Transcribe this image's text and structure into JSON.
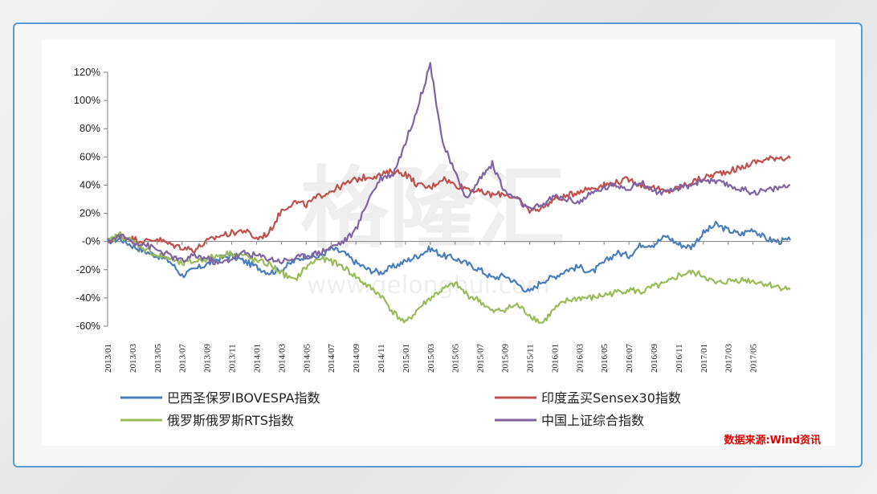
{
  "chart_data": {
    "type": "line",
    "title": "",
    "xlabel": "",
    "ylabel": "",
    "ylim": [
      -60,
      120
    ],
    "y_ticks": [
      "120%",
      "100%",
      "80%",
      "60%",
      "40%",
      "20%",
      "-0%",
      "-20%",
      "-40%",
      "-60%"
    ],
    "y_tick_values": [
      120,
      100,
      80,
      60,
      40,
      20,
      0,
      -20,
      -40,
      -60
    ],
    "x_ticks": [
      "2013/01",
      "2013/03",
      "2013/05",
      "2013/07",
      "2013/09",
      "2013/11",
      "2014/01",
      "2014/03",
      "2014/05",
      "2014/07",
      "2014/09",
      "2014/11",
      "2015/01",
      "2015/03",
      "2015/05",
      "2015/07",
      "2015/09",
      "2015/11",
      "2016/01",
      "2016/03",
      "2016/05",
      "2016/07",
      "2016/09",
      "2016/11",
      "2017/01",
      "2017/03",
      "2017/05"
    ],
    "months_total": 55,
    "series": [
      {
        "name": "巴西圣保罗IBOVESPA指数",
        "color": "#4a7ebb",
        "x": [
          0,
          1,
          2,
          3,
          4,
          5,
          6,
          7,
          8,
          9,
          10,
          11,
          12,
          13,
          14,
          15,
          16,
          17,
          18,
          19,
          20,
          21,
          22,
          23,
          24,
          25,
          26,
          27,
          28,
          29,
          30,
          31,
          32,
          33,
          34,
          35,
          36,
          37,
          38,
          39,
          40,
          41,
          42,
          43,
          44,
          45,
          46,
          47,
          48,
          49,
          50,
          51,
          52,
          53,
          54,
          55
        ],
        "values": [
          0,
          2,
          -3,
          -7,
          -10,
          -14,
          -24,
          -20,
          -16,
          -12,
          -10,
          -14,
          -18,
          -22,
          -20,
          -14,
          -10,
          -11,
          -5,
          -8,
          -15,
          -20,
          -22,
          -18,
          -14,
          -10,
          -5,
          -10,
          -12,
          -16,
          -20,
          -26,
          -24,
          -30,
          -36,
          -28,
          -25,
          -20,
          -18,
          -22,
          -15,
          -8,
          -10,
          -2,
          -2,
          4,
          -2,
          -4,
          6,
          12,
          8,
          5,
          9,
          2,
          0,
          1
        ]
      },
      {
        "name": "印度孟买Sensex30指数",
        "color": "#c0504d",
        "x": [
          0,
          1,
          2,
          3,
          4,
          5,
          6,
          7,
          8,
          9,
          10,
          11,
          12,
          13,
          14,
          15,
          16,
          17,
          18,
          19,
          20,
          21,
          22,
          23,
          24,
          25,
          26,
          27,
          28,
          29,
          30,
          31,
          32,
          33,
          34,
          35,
          36,
          37,
          38,
          39,
          40,
          41,
          42,
          43,
          44,
          45,
          46,
          47,
          48,
          49,
          50,
          51,
          52,
          53,
          54,
          55
        ],
        "values": [
          0,
          4,
          2,
          0,
          2,
          -2,
          -4,
          -6,
          0,
          4,
          6,
          8,
          2,
          6,
          22,
          28,
          26,
          32,
          36,
          40,
          44,
          46,
          47,
          50,
          48,
          40,
          38,
          45,
          40,
          38,
          35,
          33,
          34,
          30,
          22,
          24,
          30,
          32,
          36,
          38,
          40,
          42,
          44,
          40,
          38,
          35,
          38,
          42,
          45,
          48,
          50,
          52,
          56,
          58,
          60,
          59
        ]
      },
      {
        "name": "俄罗斯俄罗斯RTS指数",
        "color": "#9bbb59",
        "x": [
          0,
          1,
          2,
          3,
          4,
          5,
          6,
          7,
          8,
          9,
          10,
          11,
          12,
          13,
          14,
          15,
          16,
          17,
          18,
          19,
          20,
          21,
          22,
          23,
          24,
          25,
          26,
          27,
          28,
          29,
          30,
          31,
          32,
          33,
          34,
          35,
          36,
          37,
          38,
          39,
          40,
          41,
          42,
          43,
          44,
          45,
          46,
          47,
          48,
          49,
          50,
          51,
          52,
          53,
          54,
          55
        ],
        "values": [
          0,
          5,
          0,
          -5,
          -10,
          -12,
          -16,
          -14,
          -12,
          -10,
          -8,
          -10,
          -14,
          -16,
          -22,
          -28,
          -18,
          -12,
          -14,
          -18,
          -25,
          -32,
          -38,
          -50,
          -58,
          -48,
          -40,
          -34,
          -30,
          -38,
          -42,
          -50,
          -48,
          -45,
          -52,
          -58,
          -48,
          -42,
          -40,
          -40,
          -38,
          -36,
          -34,
          -36,
          -32,
          -30,
          -24,
          -22,
          -24,
          -30,
          -28,
          -27,
          -28,
          -30,
          -32,
          -34
        ]
      },
      {
        "name": "中国上证综合指数",
        "color": "#8064a2",
        "x": [
          0,
          1,
          2,
          3,
          4,
          5,
          6,
          7,
          8,
          9,
          10,
          11,
          12,
          13,
          14,
          15,
          16,
          17,
          18,
          19,
          20,
          21,
          22,
          23,
          24,
          25,
          26,
          27,
          28,
          29,
          30,
          31,
          32,
          33,
          34,
          35,
          36,
          37,
          38,
          39,
          40,
          41,
          42,
          43,
          44,
          45,
          46,
          47,
          48,
          49,
          50,
          51,
          52,
          53,
          54,
          55
        ],
        "values": [
          0,
          4,
          0,
          -2,
          -6,
          -10,
          -14,
          -10,
          -12,
          -16,
          -12,
          -8,
          -10,
          -12,
          -14,
          -12,
          -10,
          -8,
          -4,
          0,
          8,
          30,
          45,
          48,
          70,
          96,
          126,
          70,
          48,
          30,
          45,
          55,
          35,
          30,
          22,
          26,
          32,
          30,
          28,
          34,
          38,
          40,
          38,
          42,
          36,
          34,
          38,
          40,
          44,
          42,
          40,
          37,
          35,
          36,
          38,
          40
        ]
      }
    ]
  },
  "watermark": {
    "main": "格隆汇",
    "url": "www.gelonghui.com"
  },
  "source_note": "数据来源:Wind资讯",
  "small_header": "格隆汇"
}
